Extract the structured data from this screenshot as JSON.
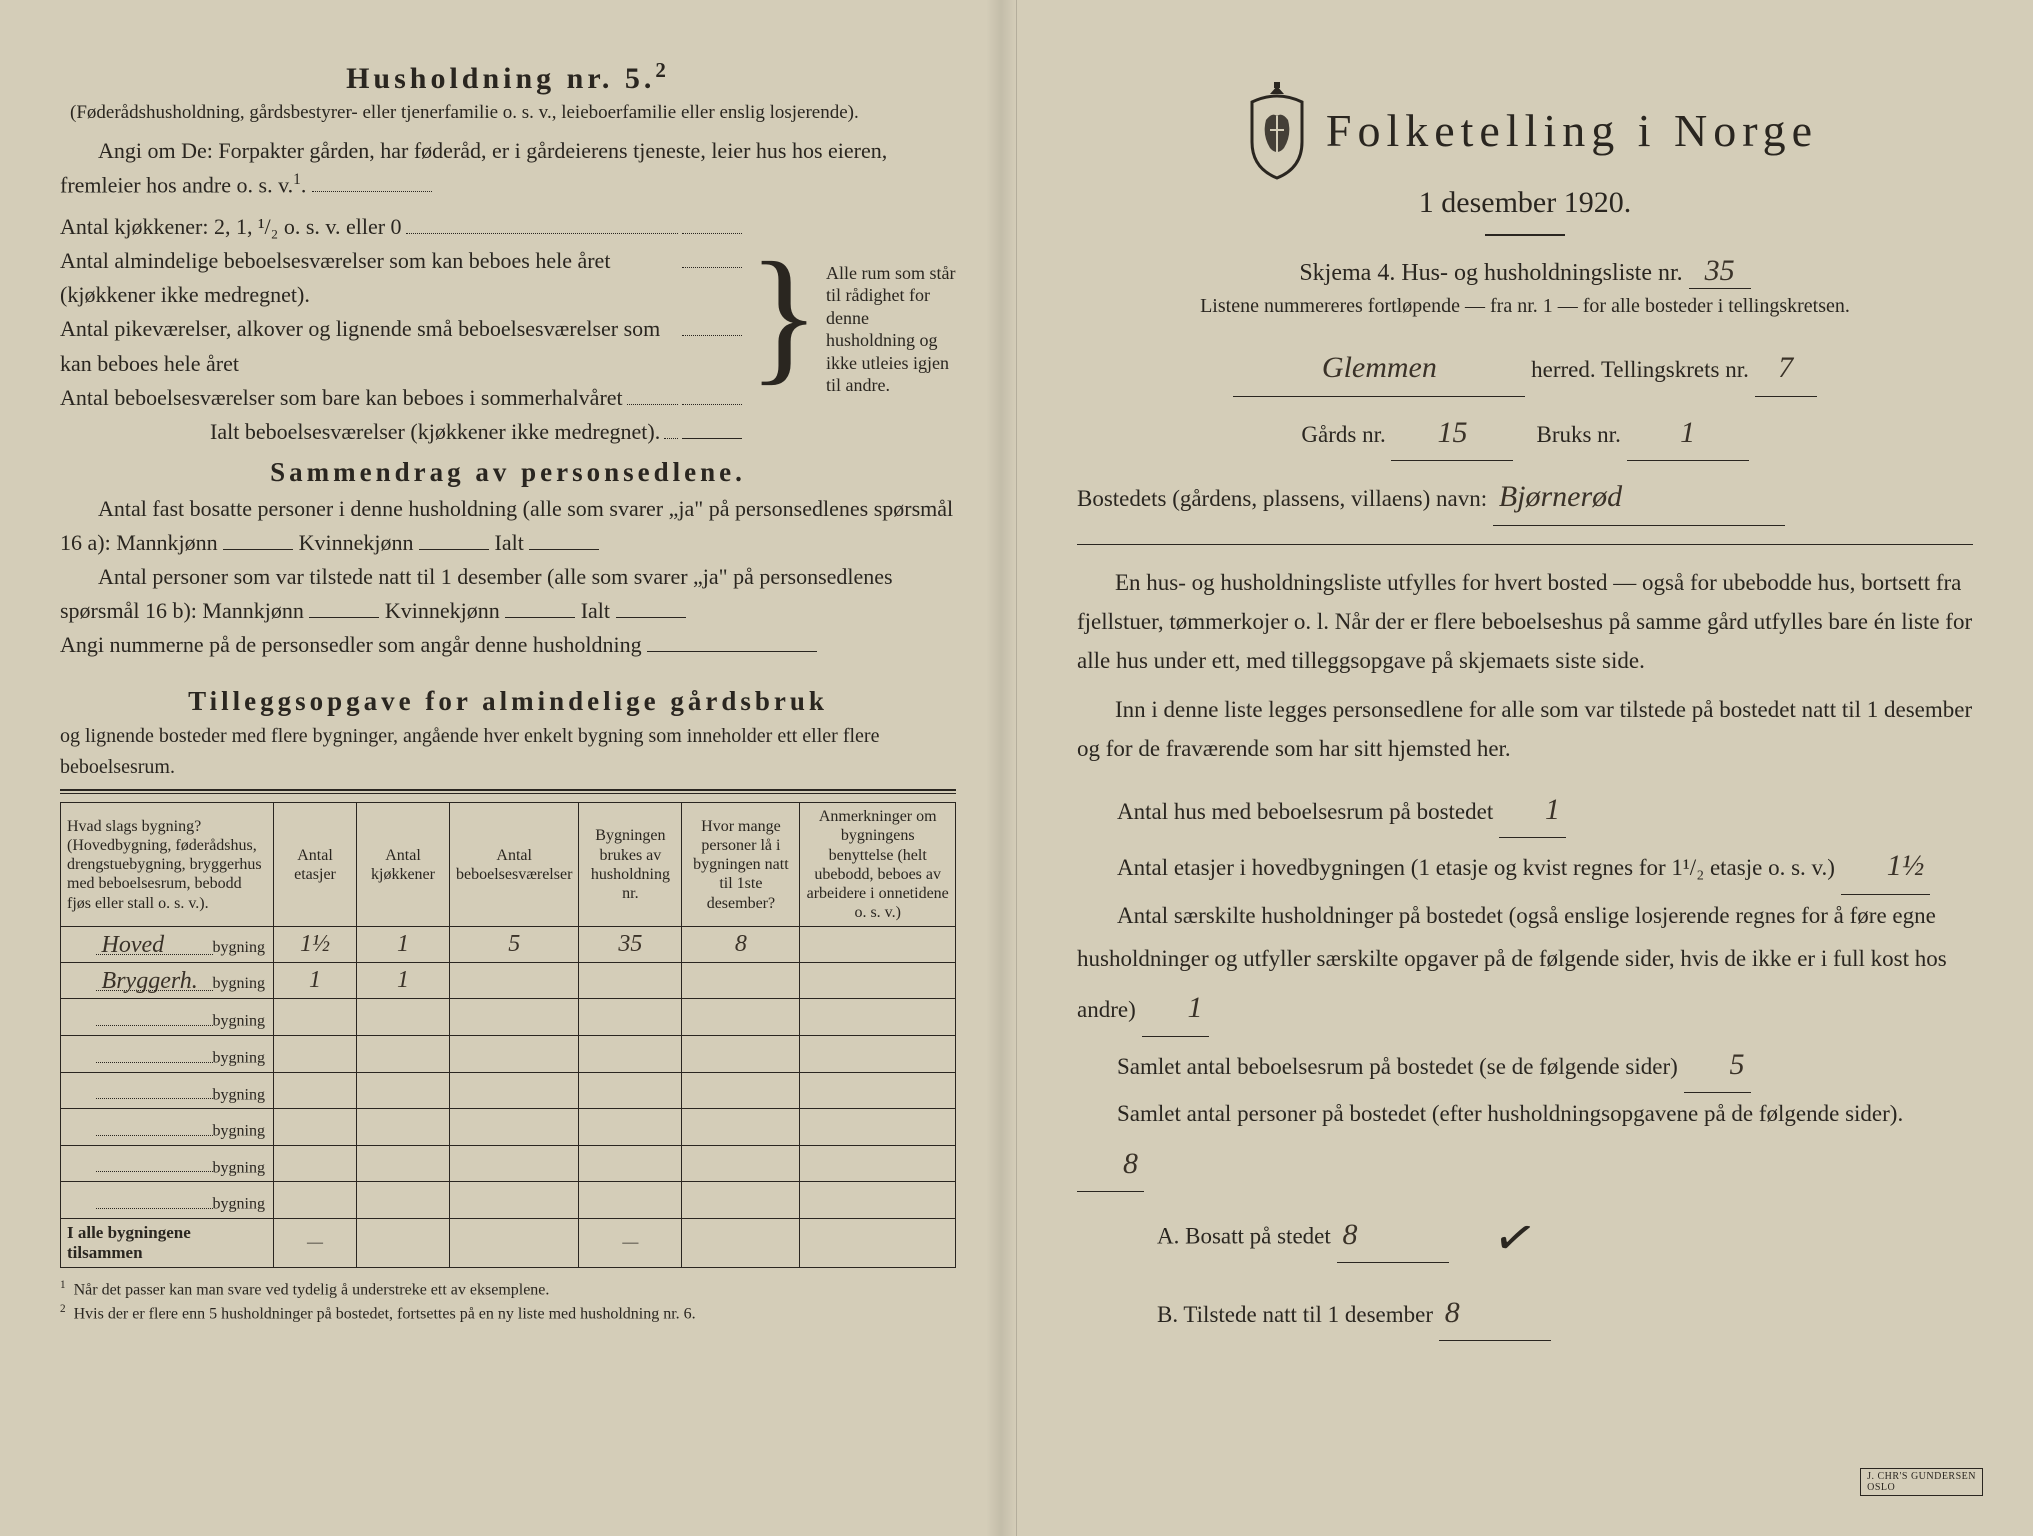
{
  "left": {
    "h5_title": "Husholdning nr. 5.",
    "h5_sup": "2",
    "h5_sub": "(Føderådshusholdning, gårdsbestyrer- eller tjenerfamilie o. s. v., leieboerfamilie eller enslig losjerende).",
    "angi": "Angi om De: Forpakter gården, har føderåd, er i gårdeierens tjeneste, leier hus hos eieren, fremleier hos andre o. s. v.",
    "angi_sup": "1",
    "kitchen_line": "Antal kjøkkener: 2, 1, ¹/₂ o. s. v. eller 0",
    "rooms_a": "Antal almindelige beboelsesværelser som kan beboes hele året (kjøkkener ikke medregnet).",
    "rooms_b": "Antal pikeværelser, alkover og lignende små beboelsesværelser som kan beboes hele året",
    "rooms_c": "Antal beboelsesværelser som bare kan beboes i sommerhalvåret",
    "rooms_total": "Ialt beboelsesværelser (kjøkkener ikke medregnet).",
    "brace_note": "Alle rum som står til rådighet for denne husholdning og ikke utleies igjen til andre.",
    "sammendrag_title": "Sammendrag av personsedlene.",
    "sam_a": "Antal fast bosatte personer i denne husholdning (alle som svarer „ja\" på personsedlenes spørsmål 16 a): Mannkjønn",
    "sam_a_k": "Kvinnekjønn",
    "sam_a_i": "Ialt",
    "sam_b": "Antal personer som var tilstede natt til 1 desember (alle som svarer „ja\" på personsedlenes spørsmål 16 b): Mannkjønn",
    "sam_b_k": "Kvinnekjønn",
    "sam_b_i": "Ialt",
    "sam_c": "Angi nummerne på de personsedler som angår denne husholdning",
    "tillegg_title": "Tilleggsopgave for almindelige gårdsbruk",
    "tillegg_sub": "og lignende bosteder med flere bygninger, angående hver enkelt bygning som inneholder ett eller flere beboelsesrum.",
    "table": {
      "headers": [
        "Hvad slags bygning?\n(Hovedbygning, føderådshus, drengstuebygning, bryggerhus med beboelsesrum, bebodd fjøs eller stall o. s. v.).",
        "Antal etasjer",
        "Antal kjøkkener",
        "Antal beboelsesværelser",
        "Bygningen brukes av husholdning nr.",
        "Hvor mange personer lå i bygningen natt til 1ste desember?",
        "Anmerkninger om bygningens benyttelse (helt ubebodd, beboes av arbeidere i onnetidene o. s. v.)"
      ],
      "rows": [
        {
          "name": "Hoved",
          "etasjer": "1½",
          "kjokken": "1",
          "vaer": "5",
          "hush": "35",
          "pers": "8",
          "anm": ""
        },
        {
          "name": "Bryggerh.",
          "etasjer": "1",
          "kjokken": "1",
          "vaer": "",
          "hush": "",
          "pers": "",
          "anm": ""
        },
        {
          "name": "",
          "etasjer": "",
          "kjokken": "",
          "vaer": "",
          "hush": "",
          "pers": "",
          "anm": ""
        },
        {
          "name": "",
          "etasjer": "",
          "kjokken": "",
          "vaer": "",
          "hush": "",
          "pers": "",
          "anm": ""
        },
        {
          "name": "",
          "etasjer": "",
          "kjokken": "",
          "vaer": "",
          "hush": "",
          "pers": "",
          "anm": ""
        },
        {
          "name": "",
          "etasjer": "",
          "kjokken": "",
          "vaer": "",
          "hush": "",
          "pers": "",
          "anm": ""
        },
        {
          "name": "",
          "etasjer": "",
          "kjokken": "",
          "vaer": "",
          "hush": "",
          "pers": "",
          "anm": ""
        },
        {
          "name": "",
          "etasjer": "",
          "kjokken": "",
          "vaer": "",
          "hush": "",
          "pers": "",
          "anm": ""
        }
      ],
      "sum_label": "I alle bygningene tilsammen",
      "bygning_word": "bygning"
    },
    "footnote1": "Når det passer kan man svare ved tydelig å understreke ett av eksemplene.",
    "footnote2": "Hvis der er flere enn 5 husholdninger på bostedet, fortsettes på en ny liste med husholdning nr. 6."
  },
  "right": {
    "title": "Folketelling i Norge",
    "subtitle": "1 desember 1920.",
    "skjema": "Skjema 4.  Hus- og husholdningsliste nr.",
    "skjema_val": "35",
    "listene": "Listene nummereres fortløpende — fra nr. 1 — for alle bosteder i tellingskretsen.",
    "herred_val": "Glemmen",
    "herred_lbl": "herred.  Tellingskrets nr.",
    "krets_val": "7",
    "gard_lbl": "Gårds nr.",
    "gard_val": "15",
    "bruks_lbl": "Bruks nr.",
    "bruks_val": "1",
    "bosted_lbl": "Bostedets (gårdens, plassens, villaens) navn:",
    "bosted_val": "Bjørnerød",
    "para1": "En hus- og husholdningsliste utfylles for hvert bosted — også for ubebodde hus, bortsett fra fjellstuer, tømmerkojer o. l.  Når der er flere beboelseshus på samme gård utfylles bare én liste for alle hus under ett, med tilleggsopgave på skjemaets siste side.",
    "para2": "Inn i denne liste legges personsedlene for alle som var tilstede på bostedet natt til 1 desember og for de fraværende som har sitt hjemsted her.",
    "q1": "Antal hus med beboelsesrum på bostedet",
    "q1_val": "1",
    "q2a": "Antal etasjer i hovedbygningen (1 etasje og kvist regnes for 1¹/₂ etasje o. s. v.)",
    "q2_val": "1½",
    "q3": "Antal særskilte husholdninger på bostedet (også enslige losjerende regnes for å føre egne husholdninger og utfyller særskilte opgaver på de følgende sider, hvis de ikke er i full kost hos andre)",
    "q3_val": "1",
    "q4": "Samlet antal beboelsesrum på bostedet (se de følgende sider)",
    "q4_val": "5",
    "q5": "Samlet antal personer på bostedet (efter husholdningsopgavene på de følgende sider).",
    "q5_val": "8",
    "qA": "A.  Bosatt på stedet",
    "qA_val": "8",
    "qB": "B.  Tilstede natt til 1 desember",
    "qB_val": "8",
    "check": "✓"
  }
}
